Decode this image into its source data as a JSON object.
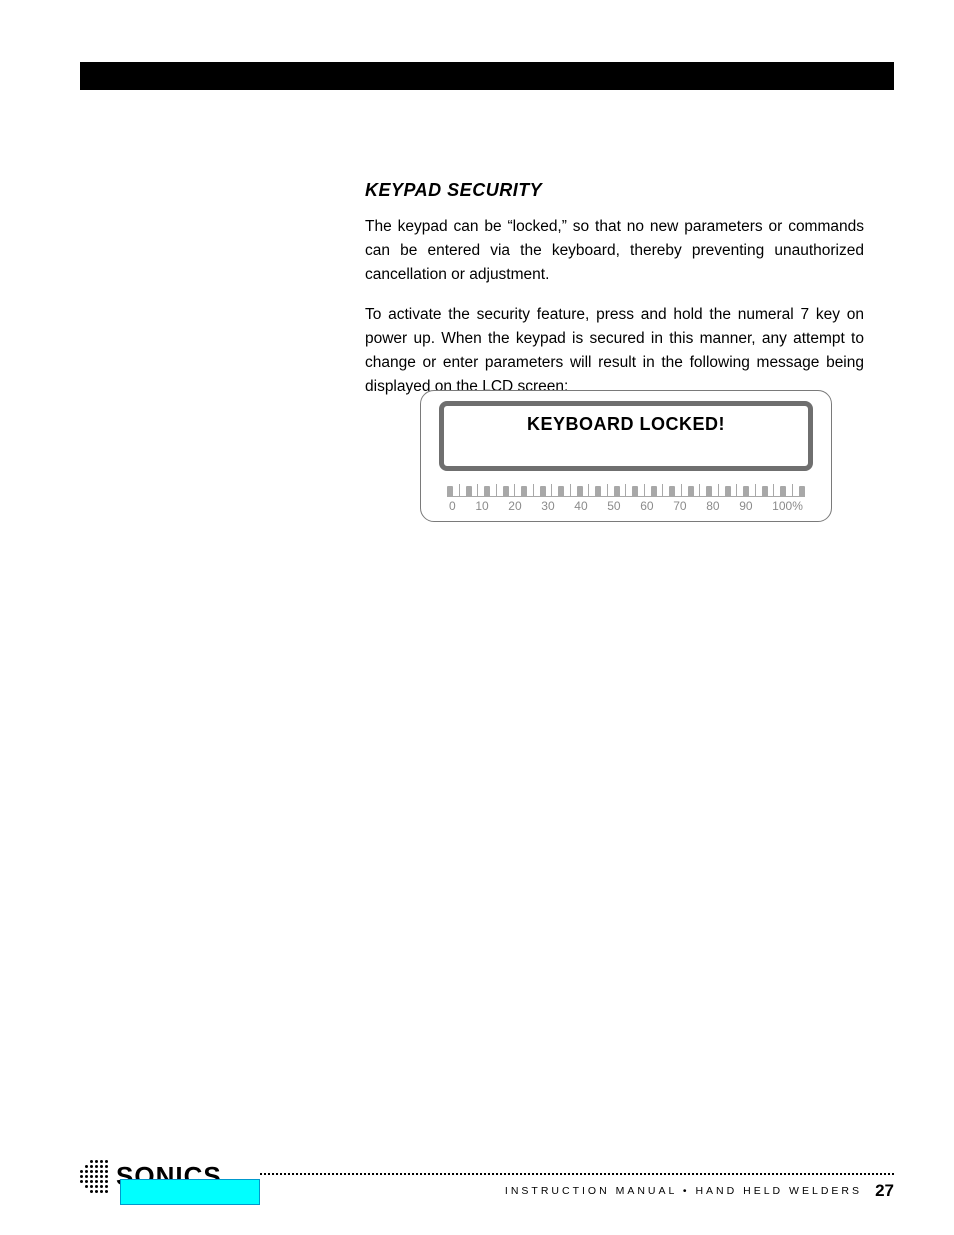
{
  "colors": {
    "page_bg": "#ffffff",
    "header_bar": "#000000",
    "text": "#000000",
    "lcd_border": "#6f6f6f",
    "panel_border": "#7a7a7a",
    "scale_tick": "#a8a8a8",
    "scale_label": "#8b8b8b",
    "cyan_box": "#00ffff",
    "cyan_border": "#0099cc"
  },
  "section": {
    "title": "KEYPAD SECURITY",
    "para1": "The keypad can be “locked,” so that no new parameters or commands can be entered via the keyboard, thereby preventing unauthorized cancellation or adjustment.",
    "para2": "To activate the security feature, press and hold the numeral 7 key on power up. When the keypad is secured in this manner, any attempt to change or enter parameters will result in the following message being displayed on the LCD screen:"
  },
  "lcd": {
    "message": "KEYBOARD LOCKED!",
    "scale_labels": [
      "0",
      "10",
      "20",
      "30",
      "40",
      "50",
      "60",
      "70",
      "80",
      "90",
      "100%"
    ],
    "tick_count": 20
  },
  "footer": {
    "logo": "SONICS",
    "text": "INSTRUCTION MANUAL • HAND HELD WELDERS",
    "page": "27"
  }
}
